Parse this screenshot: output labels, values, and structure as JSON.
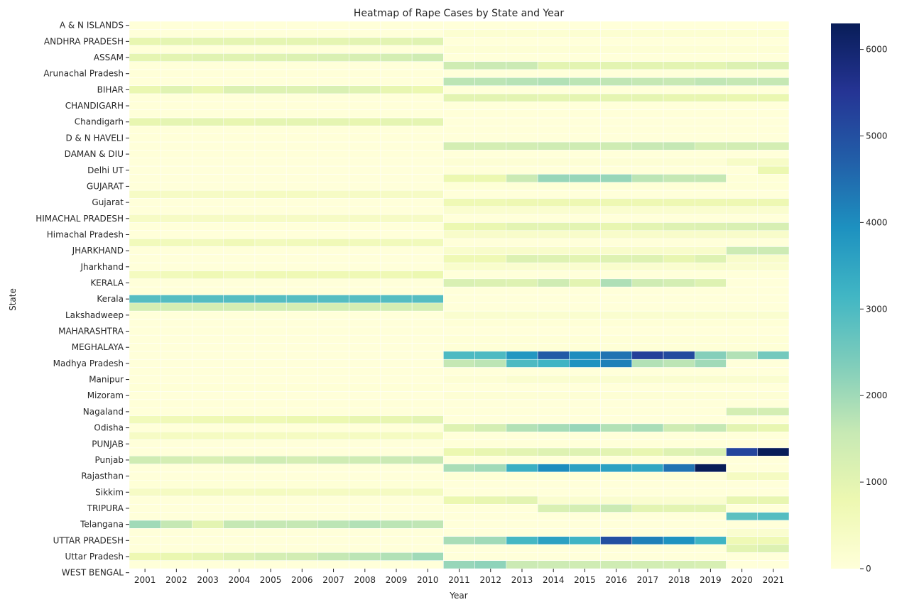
{
  "chart_data": {
    "type": "heatmap",
    "title": "Heatmap of Rape Cases by State and Year",
    "xlabel": "Year",
    "ylabel": "State",
    "x": [
      "2001",
      "2002",
      "2003",
      "2004",
      "2005",
      "2006",
      "2007",
      "2008",
      "2009",
      "2010",
      "2011",
      "2012",
      "2013",
      "2014",
      "2015",
      "2016",
      "2017",
      "2018",
      "2019",
      "2020",
      "2021"
    ],
    "y_tick_labels": [
      "A & N ISLANDS",
      "ANDHRA PRADESH",
      "ASSAM",
      "Arunachal Pradesh",
      "BIHAR",
      "CHANDIGARH",
      "Chandigarh",
      "D & N HAVELI",
      "DAMAN & DIU",
      "Delhi UT",
      "GUJARAT",
      "Gujarat",
      "HIMACHAL PRADESH",
      "Himachal Pradesh",
      "JHARKHAND",
      "Jharkhand",
      "KERALA",
      "Kerala",
      "Lakshadweep",
      "MAHARASHTRA",
      "MEGHALAYA",
      "Madhya Pradesh",
      "Manipur",
      "Mizoram",
      "Nagaland",
      "Odisha",
      "PUNJAB",
      "Punjab",
      "Rajasthan",
      "Sikkim",
      "TRIPURA",
      "Telangana",
      "UTTAR PRADESH",
      "Uttar Pradesh",
      "WEST BENGAL"
    ],
    "rows": [
      [
        10,
        10,
        10,
        10,
        10,
        10,
        10,
        10,
        10,
        10,
        0,
        0,
        0,
        0,
        0,
        0,
        0,
        0,
        0,
        0,
        0
      ],
      [
        0,
        0,
        0,
        0,
        0,
        0,
        0,
        0,
        0,
        0,
        150,
        150,
        150,
        150,
        150,
        150,
        150,
        150,
        150,
        150,
        150
      ],
      [
        900,
        950,
        950,
        950,
        950,
        950,
        950,
        1000,
        1000,
        1050,
        0,
        0,
        0,
        0,
        0,
        0,
        0,
        0,
        0,
        0,
        0
      ],
      [
        0,
        0,
        0,
        0,
        0,
        0,
        0,
        0,
        0,
        0,
        100,
        100,
        100,
        100,
        100,
        100,
        100,
        100,
        100,
        100,
        100
      ],
      [
        950,
        1000,
        1050,
        1050,
        1100,
        1150,
        1200,
        1250,
        1300,
        1400,
        0,
        0,
        0,
        0,
        0,
        0,
        0,
        0,
        0,
        0,
        0
      ],
      [
        0,
        0,
        0,
        0,
        0,
        0,
        0,
        0,
        0,
        0,
        1400,
        1500,
        1500,
        1000,
        1000,
        1000,
        1000,
        1000,
        1000,
        1150,
        1200
      ],
      [
        20,
        20,
        20,
        20,
        20,
        20,
        20,
        20,
        20,
        20,
        0,
        0,
        0,
        0,
        0,
        0,
        0,
        0,
        0,
        0,
        0
      ],
      [
        0,
        0,
        0,
        0,
        0,
        0,
        0,
        0,
        0,
        0,
        1700,
        1700,
        1750,
        1800,
        1700,
        1650,
        1600,
        1550,
        1650,
        1600,
        1600
      ],
      [
        850,
        1050,
        850,
        1150,
        1100,
        1100,
        1200,
        1050,
        900,
        800,
        0,
        0,
        0,
        0,
        0,
        0,
        0,
        0,
        0,
        0,
        0
      ],
      [
        0,
        0,
        0,
        0,
        0,
        0,
        0,
        0,
        0,
        0,
        1000,
        1000,
        1000,
        950,
        950,
        950,
        950,
        900,
        900,
        850,
        850
      ],
      [
        20,
        20,
        20,
        20,
        20,
        20,
        20,
        20,
        20,
        20,
        0,
        0,
        0,
        0,
        0,
        0,
        0,
        0,
        0,
        0,
        0
      ],
      [
        0,
        0,
        0,
        0,
        0,
        0,
        0,
        0,
        0,
        0,
        10,
        10,
        10,
        10,
        10,
        10,
        10,
        10,
        10,
        10,
        10
      ],
      [
        900,
        950,
        950,
        900,
        950,
        950,
        950,
        900,
        950,
        950,
        0,
        0,
        0,
        0,
        0,
        0,
        0,
        0,
        0,
        0,
        0
      ],
      [
        0,
        0,
        0,
        0,
        0,
        0,
        0,
        0,
        0,
        0,
        10,
        10,
        10,
        10,
        10,
        10,
        10,
        10,
        10,
        10,
        10
      ],
      [
        10,
        10,
        10,
        10,
        10,
        10,
        10,
        10,
        10,
        10,
        0,
        0,
        0,
        0,
        0,
        0,
        0,
        0,
        0,
        0,
        0
      ],
      [
        0,
        0,
        0,
        0,
        0,
        0,
        0,
        0,
        0,
        0,
        1300,
        1300,
        1350,
        1400,
        1400,
        1400,
        1550,
        1600,
        1300,
        1350,
        1300
      ],
      [
        10,
        10,
        10,
        10,
        10,
        10,
        10,
        10,
        10,
        10,
        0,
        0,
        0,
        0,
        0,
        0,
        0,
        0,
        0,
        0,
        0
      ],
      [
        0,
        0,
        0,
        0,
        0,
        0,
        0,
        0,
        0,
        0,
        100,
        100,
        100,
        100,
        100,
        100,
        100,
        100,
        100,
        350,
        350
      ],
      [
        0,
        0,
        0,
        0,
        0,
        0,
        0,
        0,
        0,
        0,
        10,
        10,
        10,
        10,
        10,
        10,
        10,
        10,
        10,
        10,
        800
      ],
      [
        0,
        0,
        0,
        0,
        0,
        0,
        0,
        0,
        0,
        0,
        800,
        800,
        1500,
        2100,
        2100,
        2100,
        1700,
        1600,
        1600,
        50,
        50
      ],
      [
        0,
        0,
        0,
        0,
        0,
        0,
        0,
        0,
        0,
        0,
        50,
        50,
        50,
        50,
        50,
        50,
        50,
        50,
        50,
        50,
        50
      ],
      [
        400,
        400,
        400,
        400,
        450,
        450,
        400,
        400,
        400,
        400,
        0,
        0,
        0,
        0,
        0,
        0,
        0,
        0,
        0,
        0,
        0
      ],
      [
        0,
        0,
        0,
        0,
        0,
        0,
        0,
        0,
        0,
        0,
        700,
        700,
        750,
        750,
        750,
        750,
        750,
        750,
        750,
        750,
        750
      ],
      [
        0,
        0,
        0,
        0,
        0,
        0,
        0,
        0,
        0,
        0,
        200,
        200,
        200,
        200,
        200,
        200,
        200,
        200,
        200,
        200,
        200
      ],
      [
        400,
        400,
        400,
        400,
        400,
        400,
        400,
        400,
        400,
        400,
        0,
        0,
        0,
        0,
        0,
        0,
        0,
        0,
        0,
        0,
        0
      ],
      [
        0,
        0,
        0,
        0,
        0,
        0,
        0,
        0,
        0,
        0,
        800,
        850,
        1000,
        1000,
        1000,
        900,
        1000,
        1100,
        1150,
        1200,
        1250
      ],
      [
        0,
        0,
        0,
        0,
        0,
        0,
        0,
        0,
        0,
        0,
        300,
        300,
        300,
        300,
        300,
        300,
        300,
        300,
        300,
        300,
        300
      ],
      [
        600,
        600,
        550,
        650,
        550,
        600,
        650,
        600,
        600,
        600,
        0,
        0,
        0,
        0,
        0,
        0,
        0,
        0,
        0,
        0,
        0
      ],
      [
        0,
        0,
        0,
        0,
        0,
        0,
        0,
        0,
        0,
        0,
        250,
        300,
        300,
        300,
        300,
        300,
        300,
        300,
        300,
        1450,
        1450
      ],
      [
        0,
        0,
        0,
        0,
        0,
        0,
        0,
        0,
        0,
        0,
        700,
        700,
        1150,
        1100,
        1000,
        1100,
        1100,
        900,
        1100,
        300,
        300
      ],
      [
        0,
        0,
        0,
        0,
        0,
        0,
        0,
        0,
        0,
        0,
        250,
        250,
        200,
        200,
        200,
        250,
        200,
        200,
        250,
        200,
        200
      ],
      [
        500,
        600,
        700,
        600,
        700,
        700,
        700,
        700,
        700,
        800,
        0,
        0,
        0,
        0,
        0,
        0,
        0,
        0,
        0,
        0,
        0
      ],
      [
        0,
        0,
        0,
        0,
        0,
        0,
        0,
        0,
        0,
        0,
        1200,
        1150,
        1100,
        1400,
        1000,
        1850,
        1400,
        1300,
        1100,
        0,
        0
      ],
      [
        10,
        10,
        10,
        10,
        10,
        10,
        10,
        10,
        10,
        10,
        0,
        0,
        0,
        0,
        0,
        0,
        0,
        0,
        0,
        0,
        0
      ],
      [
        2900,
        2900,
        2900,
        2900,
        2900,
        2900,
        2900,
        2900,
        2900,
        2900,
        0,
        0,
        0,
        0,
        0,
        0,
        0,
        0,
        0,
        0,
        0
      ],
      [
        1300,
        1300,
        1300,
        1300,
        1300,
        1300,
        1300,
        1300,
        1300,
        1300,
        0,
        0,
        0,
        0,
        0,
        0,
        0,
        0,
        0,
        0,
        0
      ],
      [
        0,
        0,
        0,
        0,
        0,
        0,
        0,
        0,
        0,
        0,
        200,
        200,
        200,
        200,
        200,
        200,
        200,
        200,
        200,
        200,
        200
      ],
      [
        0,
        0,
        0,
        0,
        0,
        0,
        0,
        0,
        0,
        0,
        50,
        50,
        50,
        50,
        50,
        50,
        50,
        50,
        50,
        50,
        50
      ],
      [
        20,
        20,
        20,
        20,
        20,
        20,
        20,
        20,
        20,
        20,
        0,
        0,
        0,
        0,
        0,
        0,
        0,
        0,
        0,
        0,
        0
      ],
      [
        0,
        0,
        0,
        0,
        0,
        0,
        0,
        0,
        0,
        0,
        50,
        50,
        50,
        50,
        50,
        50,
        50,
        50,
        50,
        50,
        50
      ],
      [
        0,
        0,
        0,
        0,
        0,
        0,
        0,
        0,
        0,
        0,
        50,
        50,
        50,
        50,
        50,
        50,
        50,
        50,
        50,
        50,
        50
      ],
      [
        0,
        0,
        0,
        0,
        0,
        0,
        0,
        0,
        0,
        0,
        3000,
        3000,
        3800,
        4800,
        4000,
        4400,
        5300,
        5100,
        2300,
        1800,
        2500
      ],
      [
        0,
        0,
        0,
        0,
        0,
        0,
        0,
        0,
        0,
        0,
        1600,
        1700,
        3000,
        3200,
        3900,
        4200,
        1800,
        1700,
        2000,
        0,
        0
      ],
      [
        10,
        10,
        10,
        10,
        10,
        10,
        10,
        10,
        10,
        10,
        0,
        0,
        0,
        0,
        0,
        0,
        0,
        0,
        0,
        0,
        0
      ],
      [
        0,
        0,
        0,
        0,
        0,
        0,
        0,
        0,
        0,
        0,
        100,
        100,
        200,
        200,
        200,
        200,
        200,
        200,
        200,
        200,
        200
      ],
      [
        50,
        50,
        50,
        50,
        50,
        50,
        50,
        50,
        50,
        50,
        0,
        0,
        0,
        0,
        0,
        0,
        0,
        0,
        0,
        0,
        0
      ],
      [
        0,
        0,
        0,
        0,
        0,
        0,
        0,
        0,
        0,
        0,
        100,
        100,
        100,
        100,
        100,
        100,
        100,
        100,
        100,
        100,
        100
      ],
      [
        10,
        10,
        10,
        10,
        10,
        10,
        10,
        10,
        10,
        10,
        0,
        0,
        0,
        0,
        0,
        0,
        0,
        0,
        0,
        0,
        0
      ],
      [
        0,
        0,
        0,
        0,
        0,
        0,
        0,
        0,
        0,
        0,
        10,
        10,
        10,
        10,
        10,
        10,
        10,
        10,
        10,
        1300,
        1300
      ],
      [
        600,
        650,
        700,
        750,
        700,
        800,
        800,
        900,
        900,
        1000,
        0,
        0,
        0,
        0,
        0,
        0,
        0,
        0,
        0,
        0,
        0
      ],
      [
        0,
        0,
        0,
        0,
        0,
        0,
        0,
        0,
        0,
        0,
        1100,
        1300,
        1800,
        1950,
        2100,
        1800,
        1900,
        1400,
        1600,
        1000,
        900
      ],
      [
        400,
        450,
        450,
        450,
        450,
        450,
        450,
        450,
        450,
        450,
        0,
        0,
        0,
        0,
        0,
        0,
        0,
        0,
        0,
        0,
        0
      ],
      [
        0,
        0,
        0,
        0,
        0,
        0,
        0,
        0,
        0,
        0,
        10,
        10,
        10,
        10,
        10,
        10,
        10,
        10,
        10,
        10,
        10
      ],
      [
        0,
        0,
        0,
        0,
        0,
        0,
        0,
        0,
        0,
        0,
        800,
        900,
        1000,
        1100,
        1100,
        1000,
        900,
        1100,
        1200,
        5200,
        6300
      ],
      [
        1400,
        1300,
        1200,
        1300,
        1400,
        1300,
        1400,
        1400,
        1500,
        1550,
        0,
        0,
        0,
        0,
        0,
        0,
        0,
        0,
        0,
        0,
        0
      ],
      [
        0,
        0,
        0,
        0,
        0,
        0,
        0,
        0,
        0,
        0,
        1900,
        2000,
        3300,
        4000,
        3600,
        3600,
        3500,
        4400,
        6300,
        0,
        0
      ],
      [
        0,
        0,
        0,
        0,
        0,
        0,
        0,
        0,
        0,
        0,
        50,
        50,
        50,
        50,
        50,
        50,
        50,
        50,
        50,
        450,
        450
      ],
      [
        50,
        50,
        50,
        50,
        50,
        50,
        50,
        50,
        50,
        50,
        0,
        0,
        0,
        0,
        0,
        0,
        0,
        0,
        0,
        0,
        0
      ],
      [
        400,
        450,
        500,
        450,
        500,
        450,
        450,
        450,
        450,
        500,
        0,
        0,
        0,
        0,
        0,
        0,
        0,
        0,
        0,
        0,
        0
      ],
      [
        0,
        0,
        0,
        0,
        0,
        0,
        0,
        0,
        0,
        0,
        800,
        900,
        1000,
        200,
        200,
        200,
        200,
        200,
        200,
        900,
        900
      ],
      [
        0,
        0,
        0,
        0,
        0,
        0,
        0,
        0,
        0,
        0,
        0,
        0,
        0,
        1200,
        1300,
        1500,
        1000,
        1000,
        1000,
        0,
        0
      ],
      [
        0,
        0,
        0,
        0,
        0,
        0,
        0,
        0,
        0,
        0,
        0,
        0,
        0,
        0,
        0,
        0,
        0,
        0,
        0,
        2800,
        2900
      ],
      [
        2000,
        1600,
        1000,
        1600,
        1600,
        1600,
        1700,
        1800,
        1700,
        1650,
        0,
        0,
        0,
        0,
        0,
        0,
        0,
        0,
        0,
        0,
        0
      ],
      [
        0,
        0,
        0,
        0,
        0,
        0,
        0,
        0,
        0,
        0,
        0,
        0,
        0,
        0,
        0,
        0,
        0,
        0,
        0,
        200,
        200
      ],
      [
        0,
        0,
        0,
        0,
        0,
        0,
        0,
        0,
        0,
        0,
        1900,
        2000,
        3100,
        3600,
        3200,
        5000,
        4200,
        3900,
        3200,
        700,
        700
      ],
      [
        0,
        0,
        0,
        0,
        0,
        0,
        0,
        0,
        0,
        0,
        0,
        0,
        0,
        0,
        0,
        0,
        0,
        0,
        0,
        1000,
        1150
      ],
      [
        750,
        850,
        950,
        1150,
        1300,
        1350,
        1600,
        1700,
        1800,
        2000,
        0,
        0,
        0,
        0,
        0,
        0,
        0,
        0,
        0,
        0,
        0
      ],
      [
        0,
        0,
        0,
        0,
        0,
        0,
        0,
        0,
        0,
        0,
        2100,
        2200,
        1500,
        1450,
        1400,
        1400,
        1350,
        1300,
        1250,
        0,
        0
      ]
    ],
    "zlim": [
      0,
      6300
    ],
    "colorbar_ticks": [
      "0",
      "1000",
      "2000",
      "3000",
      "4000",
      "5000",
      "6000"
    ],
    "colorbar_tick_values": [
      0,
      1000,
      2000,
      3000,
      4000,
      5000,
      6000
    ],
    "colormap": "YlGnBu",
    "colormap_stops": [
      "#ffffd9",
      "#edf8b1",
      "#c7e9b4",
      "#7fcdbb",
      "#41b6c4",
      "#1d91c0",
      "#225ea8",
      "#253494",
      "#081d58"
    ],
    "grid": false,
    "legend": "colorbar-right"
  }
}
